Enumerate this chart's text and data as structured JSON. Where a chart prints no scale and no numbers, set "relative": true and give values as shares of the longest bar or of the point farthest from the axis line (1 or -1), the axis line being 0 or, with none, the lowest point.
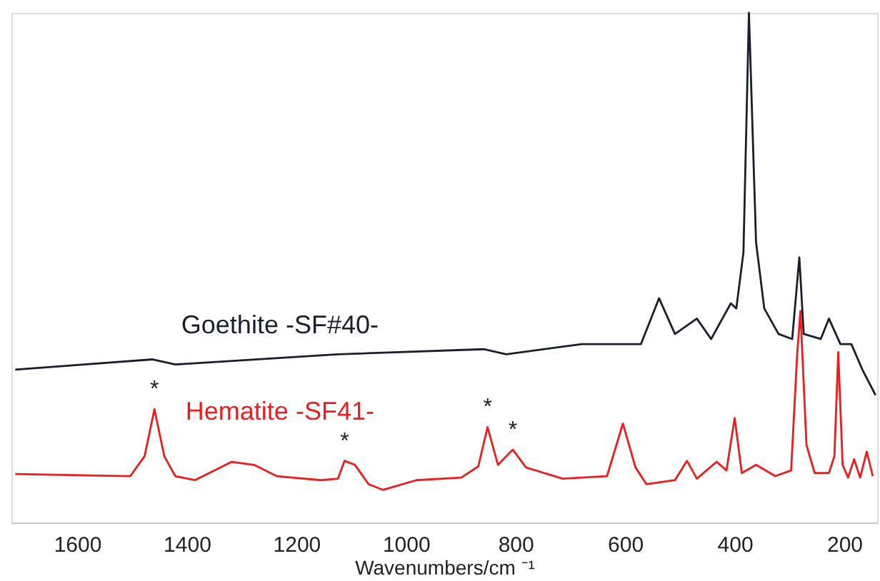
{
  "chart_data": {
    "type": "line",
    "relative": true,
    "xlabel": "Wavenumbers/cm ⁻¹",
    "xlim": [
      1720,
      140
    ],
    "xticks": [
      1600,
      1400,
      1200,
      1000,
      800,
      600,
      400,
      200
    ],
    "grid": false,
    "legend": false,
    "tick_labels": "x",
    "line_style": "solid",
    "marker": "none",
    "series": [
      {
        "name": "Goethite -SF#40-",
        "color": "#1a1f2e",
        "x": [
          1713,
          1462,
          1421,
          1124,
          858,
          817,
          679,
          571,
          538,
          509,
          469,
          443,
          407,
          397,
          384,
          374,
          361,
          346,
          320,
          295,
          282,
          274,
          243,
          228,
          207,
          187,
          167,
          143
        ],
        "values": [
          0.3,
          0.32,
          0.31,
          0.33,
          0.34,
          0.33,
          0.35,
          0.35,
          0.44,
          0.37,
          0.4,
          0.36,
          0.43,
          0.42,
          0.53,
          1.0,
          0.55,
          0.42,
          0.37,
          0.36,
          0.52,
          0.37,
          0.36,
          0.4,
          0.35,
          0.35,
          0.3,
          0.25
        ]
      },
      {
        "name": "Hematite -SF41-",
        "color": "#ee1c1c",
        "x": [
          1713,
          1503,
          1477,
          1459,
          1441,
          1421,
          1385,
          1318,
          1277,
          1236,
          1155,
          1124,
          1112,
          1093,
          1068,
          1042,
          981,
          899,
          868,
          851,
          832,
          805,
          781,
          714,
          633,
          604,
          581,
          561,
          509,
          487,
          469,
          433,
          415,
          400,
          387,
          361,
          326,
          297,
          286,
          280,
          269,
          254,
          228,
          218,
          211,
          203,
          193,
          182,
          171,
          159,
          148
        ],
        "values": [
          0.095,
          0.091,
          0.13,
          0.222,
          0.13,
          0.091,
          0.083,
          0.119,
          0.113,
          0.091,
          0.083,
          0.086,
          0.121,
          0.113,
          0.075,
          0.064,
          0.083,
          0.088,
          0.11,
          0.187,
          0.113,
          0.143,
          0.108,
          0.086,
          0.091,
          0.194,
          0.108,
          0.075,
          0.083,
          0.121,
          0.086,
          0.119,
          0.102,
          0.205,
          0.097,
          0.113,
          0.091,
          0.102,
          0.329,
          0.415,
          0.152,
          0.097,
          0.097,
          0.13,
          0.334,
          0.113,
          0.088,
          0.124,
          0.088,
          0.139,
          0.091
        ]
      }
    ],
    "annotations": [
      {
        "text": "*",
        "x": 1459,
        "y": 0.222
      },
      {
        "text": "*",
        "x": 1112,
        "y": 0.121
      },
      {
        "text": "*",
        "x": 851,
        "y": 0.187
      },
      {
        "text": "*",
        "x": 805,
        "y": 0.143
      }
    ]
  }
}
